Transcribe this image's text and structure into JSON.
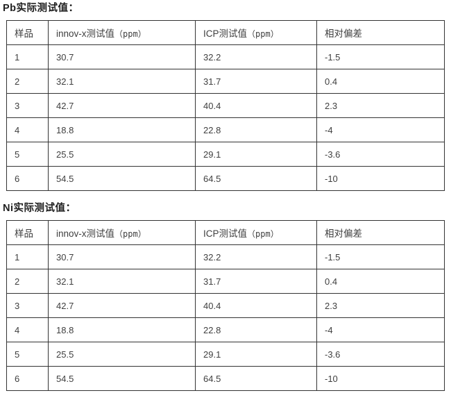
{
  "colors": {
    "background": "#ffffff",
    "border": "#333333",
    "body_text": "#3f3f3f",
    "title_text": "#1f1f1f"
  },
  "tables": [
    {
      "title": "Pb实际测试值：",
      "columns": [
        {
          "label": "样品",
          "suffix": ""
        },
        {
          "label": "innov-x测试值",
          "suffix": "（ppm）"
        },
        {
          "label": "ICP测试值",
          "suffix": "（ppm）"
        },
        {
          "label": "相对偏差",
          "suffix": ""
        }
      ],
      "rows": [
        [
          "1",
          "30.7",
          "32.2",
          "-1.5"
        ],
        [
          "2",
          "32.1",
          "31.7",
          "0.4"
        ],
        [
          "3",
          "42.7",
          "40.4",
          "2.3"
        ],
        [
          "4",
          "18.8",
          "22.8",
          "-4"
        ],
        [
          "5",
          "25.5",
          "29.1",
          "-3.6"
        ],
        [
          "6",
          "54.5",
          "64.5",
          "-10"
        ]
      ]
    },
    {
      "title": "Ni实际测试值：",
      "columns": [
        {
          "label": "样品",
          "suffix": ""
        },
        {
          "label": "innov-x测试值",
          "suffix": "（ppm）"
        },
        {
          "label": "ICP测试值",
          "suffix": "（ppm）"
        },
        {
          "label": "相对偏差",
          "suffix": ""
        }
      ],
      "rows": [
        [
          "1",
          "30.7",
          "32.2",
          "-1.5"
        ],
        [
          "2",
          "32.1",
          "31.7",
          "0.4"
        ],
        [
          "3",
          "42.7",
          "40.4",
          "2.3"
        ],
        [
          "4",
          "18.8",
          "22.8",
          "-4"
        ],
        [
          "5",
          "25.5",
          "29.1",
          "-3.6"
        ],
        [
          "6",
          "54.5",
          "64.5",
          "-10"
        ]
      ]
    }
  ]
}
